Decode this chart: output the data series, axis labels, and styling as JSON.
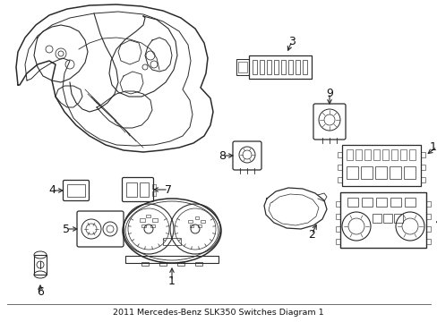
{
  "title": "2011 Mercedes-Benz SLK350 Switches Diagram 1",
  "bg_color": "#ffffff",
  "line_color": "#2a2a2a",
  "label_color": "#111111",
  "figsize": [
    4.89,
    3.6
  ],
  "dpi": 100
}
